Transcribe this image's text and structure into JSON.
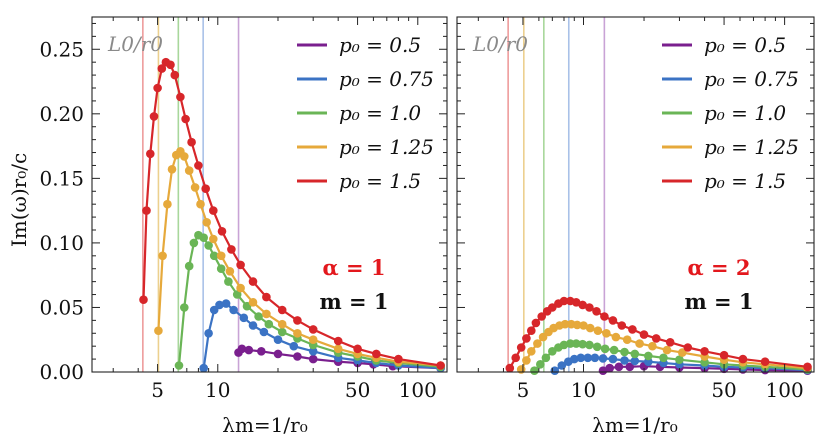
{
  "axes": {
    "ylabel": "Im(ω)r₀/c",
    "xlabel": "λm=1/r₀",
    "x_ticks": [
      5,
      10,
      50,
      100
    ],
    "y_ticks": [
      "0.00",
      "0.05",
      "0.10",
      "0.15",
      "0.20",
      "0.25"
    ]
  },
  "legend_labels": [
    "p₀ = 0.5",
    "p₀ = 0.75",
    "p₀ = 1.0",
    "p₀ = 1.25",
    "p₀ = 1.5"
  ],
  "chart_data": [
    {
      "type": "line",
      "scale": {
        "x": "log",
        "y": "linear"
      },
      "xlim": [
        2.35,
        140
      ],
      "ylim": [
        0,
        0.275
      ],
      "legend_position": "top-right",
      "reference_label": "L0/r0",
      "reference_lines": [
        {
          "x": 12.7,
          "color": "#c9a3d6"
        },
        {
          "x": 8.45,
          "color": "#a9c1e8"
        },
        {
          "x": 6.35,
          "color": "#a8d79b"
        },
        {
          "x": 5.05,
          "color": "#ecd08e"
        },
        {
          "x": 4.22,
          "color": "#ee9c9c"
        }
      ],
      "annotations": [
        "α = 1",
        "m = 1"
      ],
      "series": [
        {
          "name": "p0 = 0.5",
          "color": "#7a1f8e",
          "x": [
            12.7,
            13.2,
            14.3,
            16.5,
            20,
            25,
            30,
            40,
            50,
            60,
            75,
            130
          ],
          "y": [
            0.015,
            0.018,
            0.017,
            0.016,
            0.014,
            0.012,
            0.01,
            0.008,
            0.007,
            0.006,
            0.0045,
            0.003
          ]
        },
        {
          "name": "p0 = 0.75",
          "color": "#3b73c4",
          "x": [
            8.5,
            9.0,
            9.6,
            10.2,
            11,
            12,
            13.5,
            15,
            17,
            20,
            24,
            30,
            40,
            50,
            62,
            80,
            130
          ],
          "y": [
            0.003,
            0.03,
            0.048,
            0.052,
            0.053,
            0.048,
            0.042,
            0.036,
            0.031,
            0.025,
            0.02,
            0.016,
            0.011,
            0.009,
            0.007,
            0.005,
            0.003
          ]
        },
        {
          "name": "p0 = 1.0",
          "color": "#6ab556",
          "x": [
            6.4,
            6.8,
            7.2,
            7.6,
            8.0,
            8.5,
            9.0,
            9.6,
            10.4,
            11.3,
            12.5,
            14,
            16,
            18,
            21,
            25,
            30,
            40,
            50,
            62,
            80,
            130
          ],
          "y": [
            0.005,
            0.05,
            0.082,
            0.1,
            0.106,
            0.104,
            0.098,
            0.09,
            0.08,
            0.07,
            0.06,
            0.051,
            0.043,
            0.037,
            0.031,
            0.026,
            0.021,
            0.015,
            0.012,
            0.009,
            0.007,
            0.004
          ]
        },
        {
          "name": "p0 = 1.25",
          "color": "#e6a93b",
          "x": [
            5.05,
            5.3,
            5.6,
            5.9,
            6.2,
            6.5,
            6.8,
            7.2,
            7.7,
            8.2,
            8.8,
            9.5,
            10.4,
            11.5,
            13,
            15,
            17.5,
            21,
            25,
            30,
            40,
            50,
            62,
            80,
            130
          ],
          "y": [
            0.032,
            0.09,
            0.13,
            0.157,
            0.168,
            0.171,
            0.167,
            0.156,
            0.143,
            0.13,
            0.116,
            0.103,
            0.09,
            0.078,
            0.065,
            0.054,
            0.045,
            0.037,
            0.03,
            0.025,
            0.018,
            0.014,
            0.011,
            0.008,
            0.005
          ]
        },
        {
          "name": "p0 = 1.5",
          "color": "#d7262a",
          "x": [
            4.25,
            4.4,
            4.6,
            4.8,
            5.0,
            5.25,
            5.5,
            5.8,
            6.1,
            6.5,
            6.9,
            7.4,
            8.0,
            8.7,
            9.5,
            10.5,
            11.7,
            13,
            15,
            17.5,
            21,
            25,
            30,
            40,
            50,
            62,
            80,
            130
          ],
          "y": [
            0.056,
            0.125,
            0.169,
            0.198,
            0.22,
            0.235,
            0.24,
            0.238,
            0.23,
            0.213,
            0.196,
            0.178,
            0.16,
            0.142,
            0.125,
            0.109,
            0.095,
            0.083,
            0.07,
            0.058,
            0.048,
            0.04,
            0.033,
            0.024,
            0.018,
            0.014,
            0.01,
            0.005
          ]
        }
      ]
    },
    {
      "type": "line",
      "scale": {
        "x": "log",
        "y": "linear"
      },
      "xlim": [
        2.35,
        140
      ],
      "ylim": [
        0,
        0.275
      ],
      "legend_position": "top-right",
      "reference_label": "L0/r0",
      "reference_lines": [
        {
          "x": 12.7,
          "color": "#c9a3d6"
        },
        {
          "x": 8.45,
          "color": "#a9c1e8"
        },
        {
          "x": 6.35,
          "color": "#a8d79b"
        },
        {
          "x": 5.05,
          "color": "#ecd08e"
        },
        {
          "x": 4.22,
          "color": "#ee9c9c"
        }
      ],
      "annotations": [
        "α = 2",
        "m = 1"
      ],
      "series": [
        {
          "name": "p0 = 0.5",
          "color": "#7a1f8e",
          "x": [
            12.5,
            13.5,
            15,
            17,
            20,
            24,
            30,
            40,
            50,
            62,
            80,
            130
          ],
          "y": [
            0.001,
            0.003,
            0.004,
            0.004,
            0.0045,
            0.004,
            0.0035,
            0.003,
            0.0025,
            0.002,
            0.0015,
            0.001
          ]
        },
        {
          "name": "p0 = 0.75",
          "color": "#3b73c4",
          "x": [
            7.2,
            7.8,
            8.4,
            9.0,
            9.7,
            10.5,
            11.4,
            12.5,
            14,
            16,
            18,
            21,
            25,
            30,
            40,
            50,
            62,
            80,
            130
          ],
          "y": [
            0.001,
            0.005,
            0.008,
            0.01,
            0.011,
            0.011,
            0.011,
            0.0105,
            0.01,
            0.009,
            0.0085,
            0.008,
            0.007,
            0.006,
            0.005,
            0.004,
            0.0035,
            0.003,
            0.0015
          ]
        },
        {
          "name": "p0 = 1.0",
          "color": "#6ab556",
          "x": [
            5.7,
            6.1,
            6.5,
            7.0,
            7.5,
            8.0,
            8.6,
            9.2,
            9.9,
            10.7,
            11.7,
            12.8,
            14.2,
            16,
            18,
            21,
            25,
            30,
            40,
            50,
            62,
            80,
            130
          ],
          "y": [
            0.001,
            0.006,
            0.011,
            0.016,
            0.019,
            0.021,
            0.022,
            0.022,
            0.0215,
            0.021,
            0.0195,
            0.018,
            0.017,
            0.0155,
            0.014,
            0.0125,
            0.011,
            0.0095,
            0.0075,
            0.006,
            0.005,
            0.004,
            0.002
          ]
        },
        {
          "name": "p0 = 1.25",
          "color": "#e6a93b",
          "x": [
            4.9,
            5.2,
            5.5,
            5.9,
            6.3,
            6.7,
            7.1,
            7.6,
            8.1,
            8.7,
            9.3,
            10,
            10.8,
            11.8,
            13,
            14.5,
            16.5,
            19,
            22,
            26,
            31,
            40,
            50,
            62,
            80,
            130
          ],
          "y": [
            0.002,
            0.009,
            0.016,
            0.022,
            0.027,
            0.031,
            0.034,
            0.036,
            0.037,
            0.037,
            0.0365,
            0.036,
            0.034,
            0.032,
            0.03,
            0.027,
            0.025,
            0.022,
            0.02,
            0.017,
            0.015,
            0.012,
            0.0095,
            0.0075,
            0.006,
            0.003
          ]
        },
        {
          "name": "p0 = 1.5",
          "color": "#d7262a",
          "x": [
            4.3,
            4.6,
            4.9,
            5.2,
            5.5,
            5.8,
            6.2,
            6.6,
            7.0,
            7.5,
            8.0,
            8.6,
            9.2,
            9.9,
            10.7,
            11.6,
            12.7,
            14,
            15.5,
            17.5,
            20,
            23,
            27,
            33,
            40,
            50,
            62,
            80,
            130
          ],
          "y": [
            0.003,
            0.011,
            0.019,
            0.026,
            0.032,
            0.038,
            0.043,
            0.047,
            0.05,
            0.053,
            0.055,
            0.055,
            0.054,
            0.052,
            0.05,
            0.047,
            0.043,
            0.04,
            0.036,
            0.033,
            0.029,
            0.026,
            0.023,
            0.019,
            0.016,
            0.013,
            0.01,
            0.008,
            0.004
          ]
        }
      ]
    }
  ]
}
